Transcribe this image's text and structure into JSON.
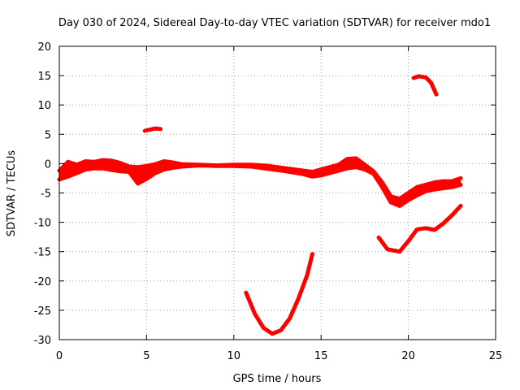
{
  "chart_data": {
    "type": "line",
    "title": "Day 030 of 2024, Sidereal Day-to-day VTEC variation (SDTVAR) for receiver mdo1",
    "xlabel": "GPS time / hours",
    "ylabel": "SDTVAR / TECUs",
    "xlim": [
      0,
      25
    ],
    "ylim": [
      -30,
      20
    ],
    "x_ticks": [
      0,
      5,
      10,
      15,
      20,
      25
    ],
    "x_tick_labels": [
      "0",
      "5",
      "10",
      "15",
      "20",
      "25"
    ],
    "y_ticks": [
      -30,
      -25,
      -20,
      -15,
      -10,
      -5,
      0,
      5,
      10,
      15,
      20
    ],
    "y_tick_labels": [
      "-30",
      "-25",
      "-20",
      "-15",
      "-10",
      "-5",
      "0",
      "5",
      "10",
      "15",
      "20"
    ],
    "grid": true,
    "color": "#ff0000",
    "series": [
      {
        "name": "main-band-upper",
        "points": [
          [
            0,
            -1.2
          ],
          [
            0.5,
            0.3
          ],
          [
            1,
            -0.2
          ],
          [
            1.5,
            0.4
          ],
          [
            2,
            0.3
          ],
          [
            2.5,
            0.6
          ],
          [
            3,
            0.5
          ],
          [
            3.5,
            0.1
          ],
          [
            4,
            -0.5
          ],
          [
            4.5,
            -0.6
          ],
          [
            5,
            -0.4
          ],
          [
            5.5,
            -0.1
          ],
          [
            6,
            0.4
          ],
          [
            6.5,
            0.2
          ],
          [
            7,
            -0.1
          ],
          [
            8,
            -0.2
          ],
          [
            9,
            -0.3
          ],
          [
            10,
            -0.2
          ],
          [
            11,
            -0.2
          ],
          [
            12,
            -0.4
          ],
          [
            13,
            -0.8
          ],
          [
            14,
            -1.2
          ],
          [
            14.5,
            -1.4
          ],
          [
            15,
            -1.0
          ],
          [
            15.5,
            -0.6
          ],
          [
            16,
            -0.2
          ],
          [
            16.5,
            0.8
          ],
          [
            17,
            0.9
          ],
          [
            17.5,
            -0.2
          ],
          [
            18,
            -1.3
          ],
          [
            18.5,
            -3.2
          ],
          [
            19,
            -5.6
          ],
          [
            19.5,
            -6.0
          ],
          [
            20,
            -5.0
          ],
          [
            20.5,
            -4.0
          ],
          [
            21,
            -3.6
          ],
          [
            21.5,
            -3.2
          ],
          [
            22,
            -3.0
          ],
          [
            22.5,
            -3.0
          ],
          [
            23,
            -2.5
          ]
        ]
      },
      {
        "name": "main-band-lower",
        "points": [
          [
            0,
            -2.7
          ],
          [
            0.5,
            -2.2
          ],
          [
            1,
            -1.6
          ],
          [
            1.5,
            -1.0
          ],
          [
            2,
            -0.8
          ],
          [
            2.5,
            -0.8
          ],
          [
            3,
            -1.1
          ],
          [
            3.5,
            -1.3
          ],
          [
            4,
            -1.4
          ],
          [
            4.5,
            -3.4
          ],
          [
            5,
            -2.6
          ],
          [
            5.5,
            -1.6
          ],
          [
            6,
            -1.0
          ],
          [
            6.5,
            -0.7
          ],
          [
            7,
            -0.5
          ],
          [
            8,
            -0.3
          ],
          [
            9,
            -0.4
          ],
          [
            10,
            -0.4
          ],
          [
            11,
            -0.5
          ],
          [
            12,
            -0.9
          ],
          [
            13,
            -1.3
          ],
          [
            14,
            -1.8
          ],
          [
            14.5,
            -2.2
          ],
          [
            15,
            -2.0
          ],
          [
            15.5,
            -1.6
          ],
          [
            16,
            -1.2
          ],
          [
            16.5,
            -0.8
          ],
          [
            17,
            -0.6
          ],
          [
            17.5,
            -1.0
          ],
          [
            18,
            -1.7
          ],
          [
            18.5,
            -4.0
          ],
          [
            19,
            -6.6
          ],
          [
            19.5,
            -7.2
          ],
          [
            20,
            -6.2
          ],
          [
            20.5,
            -5.4
          ],
          [
            21,
            -4.7
          ],
          [
            21.5,
            -4.4
          ],
          [
            22,
            -4.2
          ],
          [
            22.5,
            -4.0
          ],
          [
            23,
            -3.6
          ]
        ]
      },
      {
        "name": "segment-near-5h",
        "points": [
          [
            4.9,
            5.6
          ],
          [
            5.2,
            5.8
          ],
          [
            5.5,
            6.0
          ],
          [
            5.8,
            5.9
          ]
        ]
      },
      {
        "name": "segment-near-21h",
        "points": [
          [
            20.3,
            14.6
          ],
          [
            20.6,
            14.9
          ],
          [
            21.0,
            14.7
          ],
          [
            21.3,
            13.8
          ],
          [
            21.6,
            11.8
          ]
        ]
      },
      {
        "name": "dip-segment",
        "points": [
          [
            10.7,
            -22.0
          ],
          [
            11.2,
            -25.6
          ],
          [
            11.7,
            -28.0
          ],
          [
            12.2,
            -29.0
          ],
          [
            12.7,
            -28.4
          ],
          [
            13.2,
            -26.4
          ],
          [
            13.7,
            -23.0
          ],
          [
            14.2,
            -19.0
          ],
          [
            14.5,
            -15.4
          ]
        ]
      },
      {
        "name": "late-lower-segment",
        "points": [
          [
            18.3,
            -12.6
          ],
          [
            18.8,
            -14.6
          ],
          [
            19.5,
            -15.0
          ],
          [
            20.0,
            -13.2
          ],
          [
            20.5,
            -11.2
          ],
          [
            21.0,
            -11.0
          ],
          [
            21.5,
            -11.3
          ],
          [
            22.0,
            -10.2
          ],
          [
            22.5,
            -8.8
          ],
          [
            23.0,
            -7.2
          ]
        ]
      }
    ]
  }
}
